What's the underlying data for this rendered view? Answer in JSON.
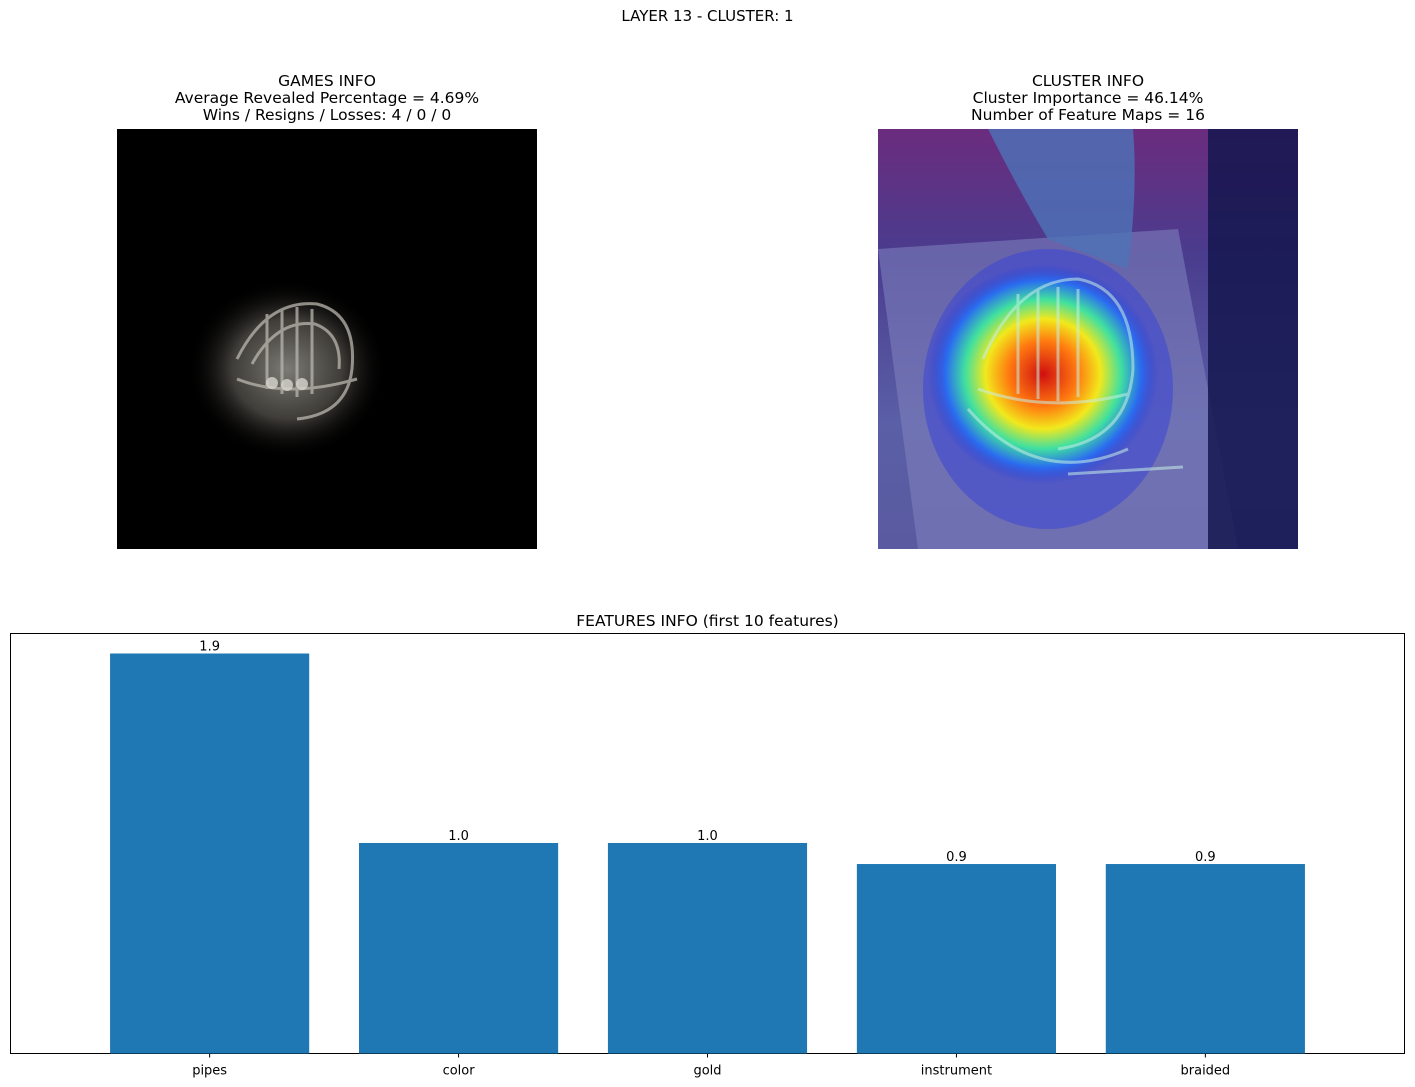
{
  "suptitle": "LAYER 13 - CLUSTER: 1",
  "games_info": {
    "title": "GAMES INFO",
    "line1": "Average Revealed Percentage = 4.69%",
    "line2": "Wins / Resigns / Losses: 4 / 0 / 0"
  },
  "cluster_info": {
    "title": "CLUSTER INFO",
    "line1": "Cluster Importance = 46.14%",
    "line2": "Number of Feature Maps = 16"
  },
  "chart_data": {
    "type": "bar",
    "title": "FEATURES INFO (first 10 features)",
    "categories": [
      "pipes",
      "color",
      "gold",
      "instrument",
      "braided"
    ],
    "values": [
      1.9,
      1.0,
      1.0,
      0.9,
      0.9
    ],
    "value_labels": [
      "1.9",
      "1.0",
      "1.0",
      "0.9",
      "0.9"
    ],
    "bar_color": "#1f77b4",
    "ylim": [
      0,
      1.995
    ],
    "xlabel": "",
    "ylabel": "",
    "grid": false,
    "y_ticks_visible": false
  }
}
